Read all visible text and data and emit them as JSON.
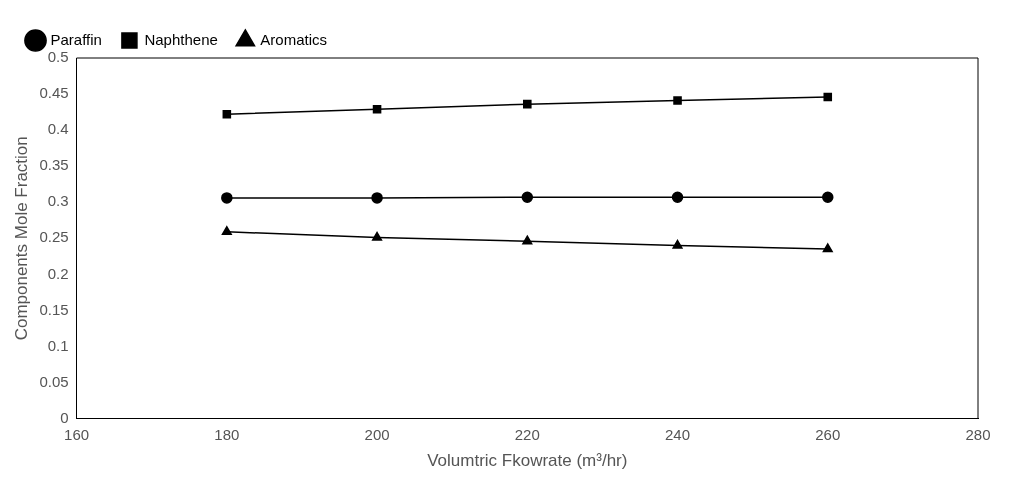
{
  "chart_data": {
    "type": "line",
    "xlabel": "Volumtric Fkowrate (m³/hr)",
    "ylabel": "Components Mole Fraction",
    "x": [
      180,
      200,
      220,
      240,
      260
    ],
    "series": [
      {
        "name": "Paraffin",
        "color": "#000000",
        "marker": "circle",
        "values": [
          0.306,
          0.306,
          0.307,
          0.307,
          0.307
        ]
      },
      {
        "name": "Naphthene",
        "color": "#000000",
        "marker": "square",
        "values": [
          0.422,
          0.429,
          0.436,
          0.441,
          0.446
        ]
      },
      {
        "name": "Aromatics",
        "color": "#000000",
        "marker": "triangle",
        "values": [
          0.259,
          0.251,
          0.246,
          0.24,
          0.235
        ]
      }
    ],
    "xlim": [
      160,
      280
    ],
    "xticks": [
      160,
      180,
      200,
      220,
      240,
      260,
      280
    ],
    "ylim": [
      0,
      0.5
    ],
    "yticks": [
      0,
      0.05,
      0.1,
      0.15,
      0.2,
      0.25,
      0.3,
      0.35,
      0.4,
      0.45,
      0.5
    ],
    "grid": false,
    "legend": "top left"
  }
}
